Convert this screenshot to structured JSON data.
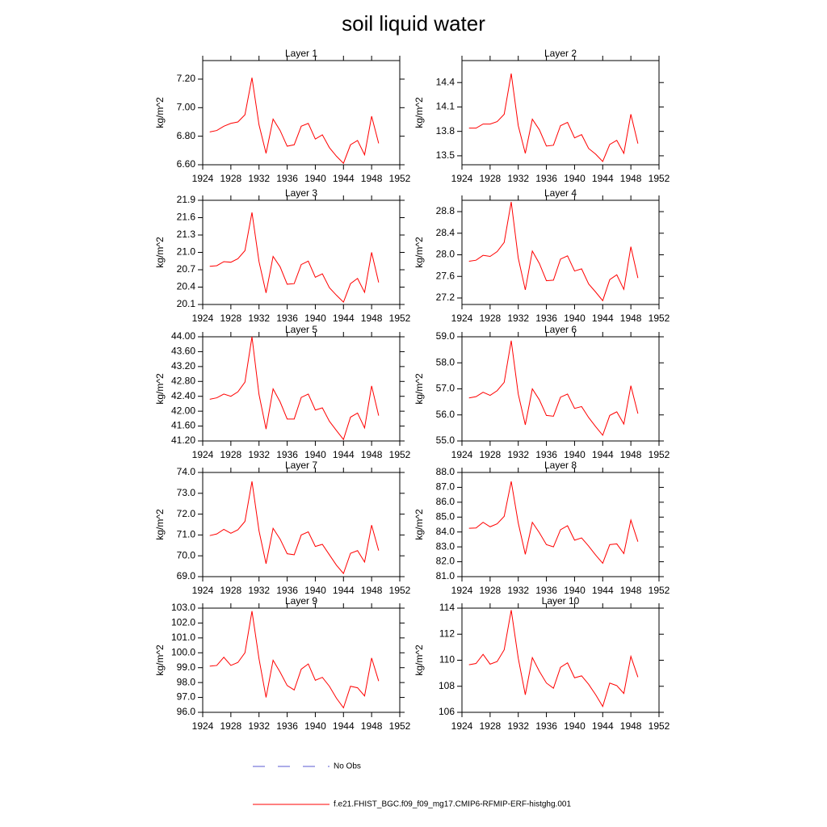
{
  "title": "soil liquid water",
  "chart_data": [
    {
      "type": "line",
      "title": "Layer 1",
      "y_label": "kg/m^2",
      "color": "#ff0000",
      "x": [
        1925,
        1926,
        1927,
        1928,
        1929,
        1930,
        1931,
        1932,
        1933,
        1934,
        1935,
        1936,
        1937,
        1938,
        1939,
        1940,
        1941,
        1942,
        1943,
        1944,
        1945,
        1946,
        1947,
        1948,
        1949
      ],
      "values": [
        6.83,
        6.84,
        6.87,
        6.89,
        6.9,
        6.95,
        7.21,
        6.88,
        6.68,
        6.92,
        6.84,
        6.73,
        6.74,
        6.87,
        6.89,
        6.78,
        6.81,
        6.72,
        6.66,
        6.61,
        6.74,
        6.77,
        6.67,
        6.94,
        6.75
      ],
      "xlim": [
        1924,
        1952
      ],
      "xticks": [
        1924,
        1928,
        1932,
        1936,
        1940,
        1944,
        1948,
        1952
      ],
      "ylim": [
        6.6,
        7.33
      ],
      "yticks": [
        {
          "value": 6.6,
          "label": "6.60"
        },
        {
          "value": 6.8,
          "label": "6.80"
        },
        {
          "value": 7.0,
          "label": "7.00"
        },
        {
          "value": 7.2,
          "label": "7.20"
        }
      ]
    },
    {
      "type": "line",
      "title": "Layer 2",
      "y_label": "kg/m^2",
      "color": "#ff0000",
      "x": [
        1925,
        1926,
        1927,
        1928,
        1929,
        1930,
        1931,
        1932,
        1933,
        1934,
        1935,
        1936,
        1937,
        1938,
        1939,
        1940,
        1941,
        1942,
        1943,
        1944,
        1945,
        1946,
        1947,
        1948,
        1949
      ],
      "values": [
        13.84,
        13.84,
        13.89,
        13.89,
        13.92,
        14.01,
        14.51,
        13.87,
        13.53,
        13.95,
        13.82,
        13.62,
        13.63,
        13.87,
        13.91,
        13.72,
        13.76,
        13.59,
        13.52,
        13.43,
        13.64,
        13.69,
        13.53,
        14.01,
        13.65
      ],
      "xlim": [
        1924,
        1952
      ],
      "xticks": [
        1924,
        1928,
        1932,
        1936,
        1940,
        1944,
        1948,
        1952
      ],
      "ylim": [
        13.39,
        14.67
      ],
      "yticks": [
        13.5,
        13.8,
        14.1,
        14.4
      ]
    },
    {
      "type": "line",
      "title": "Layer 3",
      "y_label": "kg/m^2",
      "color": "#ff0000",
      "x": [
        1925,
        1926,
        1927,
        1928,
        1929,
        1930,
        1931,
        1932,
        1933,
        1934,
        1935,
        1936,
        1937,
        1938,
        1939,
        1940,
        1941,
        1942,
        1943,
        1944,
        1945,
        1946,
        1947,
        1948,
        1949
      ],
      "values": [
        20.76,
        20.77,
        20.84,
        20.83,
        20.89,
        21.03,
        21.69,
        20.84,
        20.3,
        20.93,
        20.75,
        20.45,
        20.46,
        20.79,
        20.85,
        20.57,
        20.63,
        20.39,
        20.26,
        20.14,
        20.46,
        20.55,
        20.31,
        21.0,
        20.48
      ],
      "xlim": [
        1924,
        1952
      ],
      "xticks": [
        1924,
        1928,
        1932,
        1936,
        1940,
        1944,
        1948,
        1952
      ],
      "ylim": [
        20.1,
        21.9
      ],
      "yticks": [
        20.1,
        20.4,
        20.7,
        {
          "value": 21,
          "label": "21.0"
        },
        21.3,
        21.6,
        21.9
      ]
    },
    {
      "type": "line",
      "title": "Layer 4",
      "y_label": "kg/m^2",
      "color": "#ff0000",
      "x": [
        1925,
        1926,
        1927,
        1928,
        1929,
        1930,
        1931,
        1932,
        1933,
        1934,
        1935,
        1936,
        1937,
        1938,
        1939,
        1940,
        1941,
        1942,
        1943,
        1944,
        1945,
        1946,
        1947,
        1948,
        1949
      ],
      "values": [
        27.88,
        27.9,
        27.99,
        27.97,
        28.06,
        28.23,
        28.98,
        27.94,
        27.35,
        28.07,
        27.84,
        27.52,
        27.53,
        27.92,
        27.98,
        27.7,
        27.74,
        27.46,
        27.31,
        27.15,
        27.54,
        27.63,
        27.36,
        28.15,
        27.57
      ],
      "xlim": [
        1924,
        1952
      ],
      "xticks": [
        1924,
        1928,
        1932,
        1936,
        1940,
        1944,
        1948,
        1952
      ],
      "ylim": [
        27.08,
        29.01
      ],
      "yticks": [
        27.2,
        27.6,
        {
          "value": 28,
          "label": "28.0"
        },
        28.4,
        28.8
      ]
    },
    {
      "type": "line",
      "title": "Layer 5",
      "y_label": "kg/m^2",
      "color": "#ff0000",
      "x": [
        1925,
        1926,
        1927,
        1928,
        1929,
        1930,
        1931,
        1932,
        1933,
        1934,
        1935,
        1936,
        1937,
        1938,
        1939,
        1940,
        1941,
        1942,
        1943,
        1944,
        1945,
        1946,
        1947,
        1948,
        1949
      ],
      "values": [
        42.32,
        42.36,
        42.46,
        42.4,
        42.52,
        42.78,
        44.0,
        42.45,
        41.52,
        42.6,
        42.25,
        41.79,
        41.79,
        42.37,
        42.46,
        42.03,
        42.09,
        41.73,
        41.48,
        41.24,
        41.84,
        41.95,
        41.55,
        42.68,
        41.88
      ],
      "xlim": [
        1924,
        1952
      ],
      "xticks": [
        1924,
        1928,
        1932,
        1936,
        1940,
        1944,
        1948,
        1952
      ],
      "ylim": [
        41.2,
        44
      ],
      "yticks": [
        {
          "value": 41.2,
          "label": "41.20"
        },
        {
          "value": 41.6,
          "label": "41.60"
        },
        {
          "value": 42,
          "label": "42.00"
        },
        {
          "value": 42.4,
          "label": "42.40"
        },
        {
          "value": 42.8,
          "label": "42.80"
        },
        {
          "value": 43.2,
          "label": "43.20"
        },
        {
          "value": 43.6,
          "label": "43.60"
        },
        {
          "value": 44,
          "label": "44.00"
        }
      ]
    },
    {
      "type": "line",
      "title": "Layer 6",
      "y_label": "kg/m^2",
      "color": "#ff0000",
      "x": [
        1925,
        1926,
        1927,
        1928,
        1929,
        1930,
        1931,
        1932,
        1933,
        1934,
        1935,
        1936,
        1937,
        1938,
        1939,
        1940,
        1941,
        1942,
        1943,
        1944,
        1945,
        1946,
        1947,
        1948,
        1949
      ],
      "values": [
        56.65,
        56.7,
        56.87,
        56.75,
        56.93,
        57.25,
        58.85,
        56.8,
        55.62,
        57.0,
        56.58,
        55.98,
        55.95,
        56.68,
        56.8,
        56.25,
        56.32,
        55.9,
        55.55,
        55.22,
        55.98,
        56.12,
        55.65,
        57.12,
        56.05
      ],
      "xlim": [
        1924,
        1952
      ],
      "xticks": [
        1924,
        1928,
        1932,
        1936,
        1940,
        1944,
        1948,
        1952
      ],
      "ylim": [
        55,
        59
      ],
      "yticks": [
        {
          "value": 55,
          "label": "55.0"
        },
        {
          "value": 56,
          "label": "56.0"
        },
        {
          "value": 57,
          "label": "57.0"
        },
        {
          "value": 58,
          "label": "58.0"
        },
        {
          "value": 59,
          "label": "59.0"
        }
      ]
    },
    {
      "type": "line",
      "title": "Layer 7",
      "y_label": "kg/m^2",
      "color": "#ff0000",
      "x": [
        1925,
        1926,
        1927,
        1928,
        1929,
        1930,
        1931,
        1932,
        1933,
        1934,
        1935,
        1936,
        1937,
        1938,
        1939,
        1940,
        1941,
        1942,
        1943,
        1944,
        1945,
        1946,
        1947,
        1948,
        1949
      ],
      "values": [
        70.97,
        71.05,
        71.27,
        71.08,
        71.25,
        71.65,
        73.57,
        71.2,
        69.62,
        71.32,
        70.8,
        70.1,
        70.05,
        71.0,
        71.15,
        70.45,
        70.55,
        70.05,
        69.55,
        69.15,
        70.12,
        70.25,
        69.7,
        71.47,
        70.25
      ],
      "xlim": [
        1924,
        1952
      ],
      "xticks": [
        1924,
        1928,
        1932,
        1936,
        1940,
        1944,
        1948,
        1952
      ],
      "ylim": [
        69,
        74
      ],
      "yticks": [
        {
          "value": 69,
          "label": "69.0"
        },
        {
          "value": 70,
          "label": "70.0"
        },
        {
          "value": 71,
          "label": "71.0"
        },
        {
          "value": 72,
          "label": "72.0"
        },
        {
          "value": 73,
          "label": "73.0"
        },
        {
          "value": 74,
          "label": "74.0"
        }
      ]
    },
    {
      "type": "line",
      "title": "Layer 8",
      "y_label": "kg/m^2",
      "color": "#ff0000",
      "x": [
        1925,
        1926,
        1927,
        1928,
        1929,
        1930,
        1931,
        1932,
        1933,
        1934,
        1935,
        1936,
        1937,
        1938,
        1939,
        1940,
        1941,
        1942,
        1943,
        1944,
        1945,
        1946,
        1947,
        1948,
        1949
      ],
      "values": [
        84.25,
        84.27,
        84.65,
        84.35,
        84.55,
        85.05,
        87.4,
        84.6,
        82.5,
        84.65,
        83.95,
        83.15,
        83.0,
        84.15,
        84.42,
        83.45,
        83.6,
        83.05,
        82.45,
        81.9,
        83.15,
        83.2,
        82.55,
        84.8,
        83.35
      ],
      "xlim": [
        1924,
        1952
      ],
      "xticks": [
        1924,
        1928,
        1932,
        1936,
        1940,
        1944,
        1948,
        1952
      ],
      "ylim": [
        81,
        88
      ],
      "yticks": [
        {
          "value": 81,
          "label": "81.0"
        },
        {
          "value": 82,
          "label": "82.0"
        },
        {
          "value": 83,
          "label": "83.0"
        },
        {
          "value": 84,
          "label": "84.0"
        },
        {
          "value": 85,
          "label": "85.0"
        },
        {
          "value": 86,
          "label": "86.0"
        },
        {
          "value": 87,
          "label": "87.0"
        },
        {
          "value": 88,
          "label": "88.0"
        }
      ]
    },
    {
      "type": "line",
      "title": "Layer 9",
      "y_label": "kg/m^2",
      "color": "#ff0000",
      "x": [
        1925,
        1926,
        1927,
        1928,
        1929,
        1930,
        1931,
        1932,
        1933,
        1934,
        1935,
        1936,
        1937,
        1938,
        1939,
        1940,
        1941,
        1942,
        1943,
        1944,
        1945,
        1946,
        1947,
        1948,
        1949
      ],
      "values": [
        99.1,
        99.15,
        99.7,
        99.15,
        99.35,
        100.0,
        102.8,
        99.6,
        97.0,
        99.5,
        98.7,
        97.8,
        97.5,
        98.9,
        99.25,
        98.15,
        98.35,
        97.75,
        96.95,
        96.3,
        97.75,
        97.65,
        97.1,
        99.65,
        98.1
      ],
      "xlim": [
        1924,
        1952
      ],
      "xticks": [
        1924,
        1928,
        1932,
        1936,
        1940,
        1944,
        1948,
        1952
      ],
      "ylim": [
        96,
        103
      ],
      "yticks": [
        {
          "value": 96,
          "label": "96.0"
        },
        {
          "value": 97,
          "label": "97.0"
        },
        {
          "value": 98,
          "label": "98.0"
        },
        {
          "value": 99,
          "label": "99.0"
        },
        {
          "value": 100,
          "label": "100.0"
        },
        {
          "value": 101,
          "label": "101.0"
        },
        {
          "value": 102,
          "label": "102.0"
        },
        {
          "value": 103,
          "label": "103.0"
        }
      ]
    },
    {
      "type": "line",
      "title": "Layer 10",
      "y_label": "kg/m^2",
      "color": "#ff0000",
      "x": [
        1925,
        1926,
        1927,
        1928,
        1929,
        1930,
        1931,
        1932,
        1933,
        1934,
        1935,
        1936,
        1937,
        1938,
        1939,
        1940,
        1941,
        1942,
        1943,
        1944,
        1945,
        1946,
        1947,
        1948,
        1949
      ],
      "values": [
        109.65,
        109.75,
        110.45,
        109.7,
        109.9,
        110.8,
        113.85,
        110.15,
        107.35,
        110.2,
        109.15,
        108.25,
        107.85,
        109.45,
        109.8,
        108.65,
        108.8,
        108.15,
        107.35,
        106.45,
        108.25,
        108.05,
        107.45,
        110.3,
        108.7
      ],
      "xlim": [
        1924,
        1952
      ],
      "xticks": [
        1924,
        1928,
        1932,
        1936,
        1940,
        1944,
        1948,
        1952
      ],
      "ylim": [
        106,
        114
      ],
      "yticks": [
        106,
        108,
        110,
        112,
        114
      ]
    }
  ],
  "legend": [
    {
      "label": "No Obs",
      "color": "#5a5ad2",
      "dashed": true
    },
    {
      "label": "f.e21.FHIST_BGC.f09_f09_mg17.CMIP6-RFMIP-ERF-histghg.001",
      "color": "#ff0000",
      "dashed": false
    }
  ]
}
